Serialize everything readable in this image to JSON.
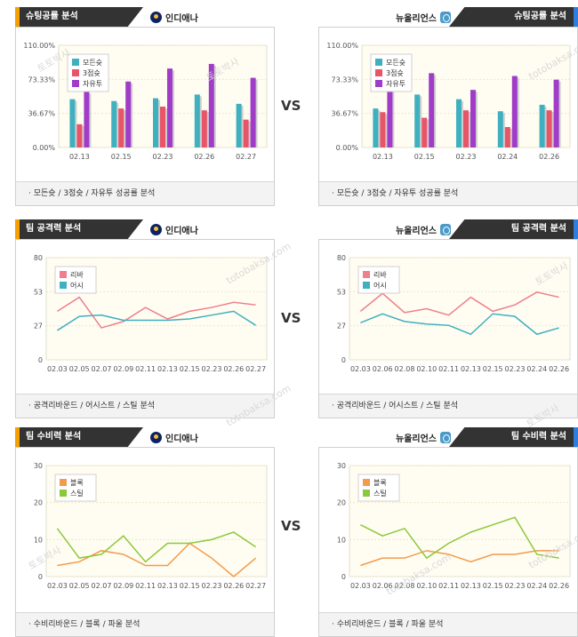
{
  "sections": [
    {
      "title": "슈팅공률 분석",
      "vs": "VS",
      "left": {
        "team": "인디애나",
        "footer": "·  모든슛 / 3점슛 / 자유투 성공률 분석",
        "chart_data": {
          "type": "bar",
          "categories": [
            "02.13",
            "02.15",
            "02.23",
            "02.26",
            "02.27"
          ],
          "series": [
            {
              "name": "모든슛",
              "color": "#3fb0c0",
              "values": [
                52,
                50,
                53,
                57,
                47
              ]
            },
            {
              "name": "3점슛",
              "color": "#e85468",
              "values": [
                25,
                42,
                44,
                40,
                30
              ]
            },
            {
              "name": "자유투",
              "color": "#a03cc8",
              "values": [
                60,
                71,
                85,
                90,
                75
              ]
            }
          ],
          "yticks": [
            "110.00%",
            "73.33%",
            "36.67%",
            "0.00%"
          ],
          "ylim": [
            0,
            110
          ]
        }
      },
      "right": {
        "team": "뉴올리언스",
        "footer": "·  모든슛 / 3점슛 / 자유투 성공률 분석",
        "chart_data": {
          "type": "bar",
          "categories": [
            "02.13",
            "02.15",
            "02.23",
            "02.24",
            "02.26"
          ],
          "series": [
            {
              "name": "모든슛",
              "color": "#3fb0c0",
              "values": [
                42,
                57,
                52,
                39,
                46
              ]
            },
            {
              "name": "3점슛",
              "color": "#e85468",
              "values": [
                38,
                32,
                40,
                22,
                40
              ]
            },
            {
              "name": "자유투",
              "color": "#a03cc8",
              "values": [
                71,
                80,
                62,
                77,
                73
              ]
            }
          ],
          "yticks": [
            "110.00%",
            "73.33%",
            "36.67%",
            "0.00%"
          ],
          "ylim": [
            0,
            110
          ]
        }
      }
    },
    {
      "title": "팀 공격력 분석",
      "vs": "VS",
      "left": {
        "team": "인디애나",
        "footer": "·  공격리바운드 / 어시스트 / 스틸 분석",
        "chart_data": {
          "type": "line",
          "x": [
            "02.03",
            "02.05",
            "02.07",
            "02.09",
            "02.11",
            "02.13",
            "02.15",
            "02.23",
            "02.26",
            "02.27"
          ],
          "series": [
            {
              "name": "리바",
              "color": "#ee7f8c",
              "values": [
                38,
                49,
                25,
                30,
                41,
                32,
                38,
                41,
                45,
                43
              ]
            },
            {
              "name": "어시",
              "color": "#3fb0c0",
              "values": [
                23,
                34,
                35,
                31,
                31,
                31,
                32,
                35,
                38,
                27
              ]
            }
          ],
          "yticks": [
            "80",
            "53",
            "27",
            "0"
          ],
          "ylim": [
            0,
            80
          ]
        }
      },
      "right": {
        "team": "뉴올리언스",
        "footer": "·  공격리바운드 / 어시스트 / 스틸 분석",
        "chart_data": {
          "type": "line",
          "x": [
            "02.03",
            "02.06",
            "02.08",
            "02.10",
            "02.11",
            "02.13",
            "02.15",
            "02.23",
            "02.24",
            "02.26"
          ],
          "series": [
            {
              "name": "리바",
              "color": "#ee7f8c",
              "values": [
                38,
                52,
                37,
                40,
                35,
                49,
                38,
                43,
                53,
                49
              ]
            },
            {
              "name": "어시",
              "color": "#3fb0c0",
              "values": [
                29,
                36,
                30,
                28,
                27,
                20,
                36,
                34,
                20,
                25
              ]
            }
          ],
          "yticks": [
            "80",
            "53",
            "27",
            "0"
          ],
          "ylim": [
            0,
            80
          ]
        }
      }
    },
    {
      "title": "팀 수비력 분석",
      "vs": "VS",
      "left": {
        "team": "인디애나",
        "footer": "·  수비리바운드 / 블록 / 파울 분석",
        "chart_data": {
          "type": "line",
          "x": [
            "02.03",
            "02.05",
            "02.07",
            "02.09",
            "02.11",
            "02.13",
            "02.15",
            "02.23",
            "02.26",
            "02.27"
          ],
          "series": [
            {
              "name": "블록",
              "color": "#f39a4c",
              "values": [
                3,
                4,
                7,
                6,
                3,
                3,
                9,
                5,
                0,
                5
              ]
            },
            {
              "name": "스틸",
              "color": "#8cc83c",
              "values": [
                13,
                5,
                6,
                11,
                4,
                9,
                9,
                10,
                12,
                8
              ]
            }
          ],
          "yticks": [
            "30",
            "20",
            "10",
            "0"
          ],
          "ylim": [
            0,
            30
          ]
        }
      },
      "right": {
        "team": "뉴올리언스",
        "footer": "·  수비리바운드 / 블록 / 파울 분석",
        "chart_data": {
          "type": "line",
          "x": [
            "02.03",
            "02.06",
            "02.08",
            "02.10",
            "02.11",
            "02.13",
            "02.15",
            "02.23",
            "02.24",
            "02.26"
          ],
          "series": [
            {
              "name": "블록",
              "color": "#f39a4c",
              "values": [
                3,
                5,
                5,
                7,
                6,
                4,
                6,
                6,
                7,
                7
              ]
            },
            {
              "name": "스틸",
              "color": "#8cc83c",
              "values": [
                14,
                11,
                13,
                5,
                9,
                12,
                14,
                16,
                6,
                5
              ]
            }
          ],
          "yticks": [
            "30",
            "20",
            "10",
            "0"
          ],
          "ylim": [
            0,
            30
          ]
        }
      }
    }
  ],
  "watermark": [
    "토토박사",
    "totobaksa.com"
  ]
}
